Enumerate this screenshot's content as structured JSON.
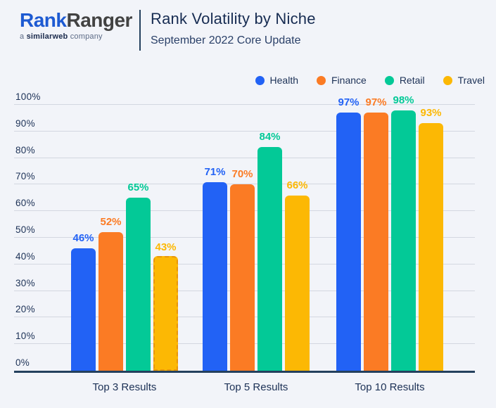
{
  "header": {
    "logo": {
      "name_part_blue": "Rank",
      "name_part_dark": "Ranger",
      "sub_prefix": "a ",
      "sub_brand": "similarweb",
      "sub_suffix": " company"
    },
    "title": "Rank Volatility by Niche",
    "subtitle": "September 2022 Core Update"
  },
  "colors": {
    "background": "#f2f4f9",
    "navy_text": "#1c3156",
    "axis_line": "#24405e",
    "gridline": "#d3d7e0",
    "logo_blue": "#1d5ad2",
    "health": "#2262f5",
    "finance": "#fb7b24",
    "retail": "#03c997",
    "travel": "#fcb804"
  },
  "chart_data": {
    "type": "bar",
    "title": "Rank Volatility by Niche",
    "subtitle": "September 2022 Core Update",
    "categories": [
      "Top 3 Results",
      "Top 5 Results",
      "Top 10 Results"
    ],
    "series": [
      {
        "name": "Health",
        "color": "#2262f5",
        "values": [
          46,
          71,
          97
        ]
      },
      {
        "name": "Finance",
        "color": "#fb7b24",
        "values": [
          52,
          70,
          97
        ]
      },
      {
        "name": "Retail",
        "color": "#03c997",
        "values": [
          65,
          84,
          98
        ]
      },
      {
        "name": "Travel",
        "color": "#fcb804",
        "values": [
          43,
          66,
          93
        ]
      }
    ],
    "value_suffix": "%",
    "ylim": [
      0,
      100
    ],
    "ytick_step": 10,
    "ytick_labels": [
      "0%",
      "10%",
      "20%",
      "30%",
      "40%",
      "50%",
      "60%",
      "70%",
      "80%",
      "90%",
      "100%"
    ],
    "grid": true,
    "legend_position": "top-right",
    "value_labels": "above-bar, colored per series",
    "highlighted_bar": {
      "category_index": 0,
      "series_index": 3,
      "style": "dashed-outline"
    }
  }
}
